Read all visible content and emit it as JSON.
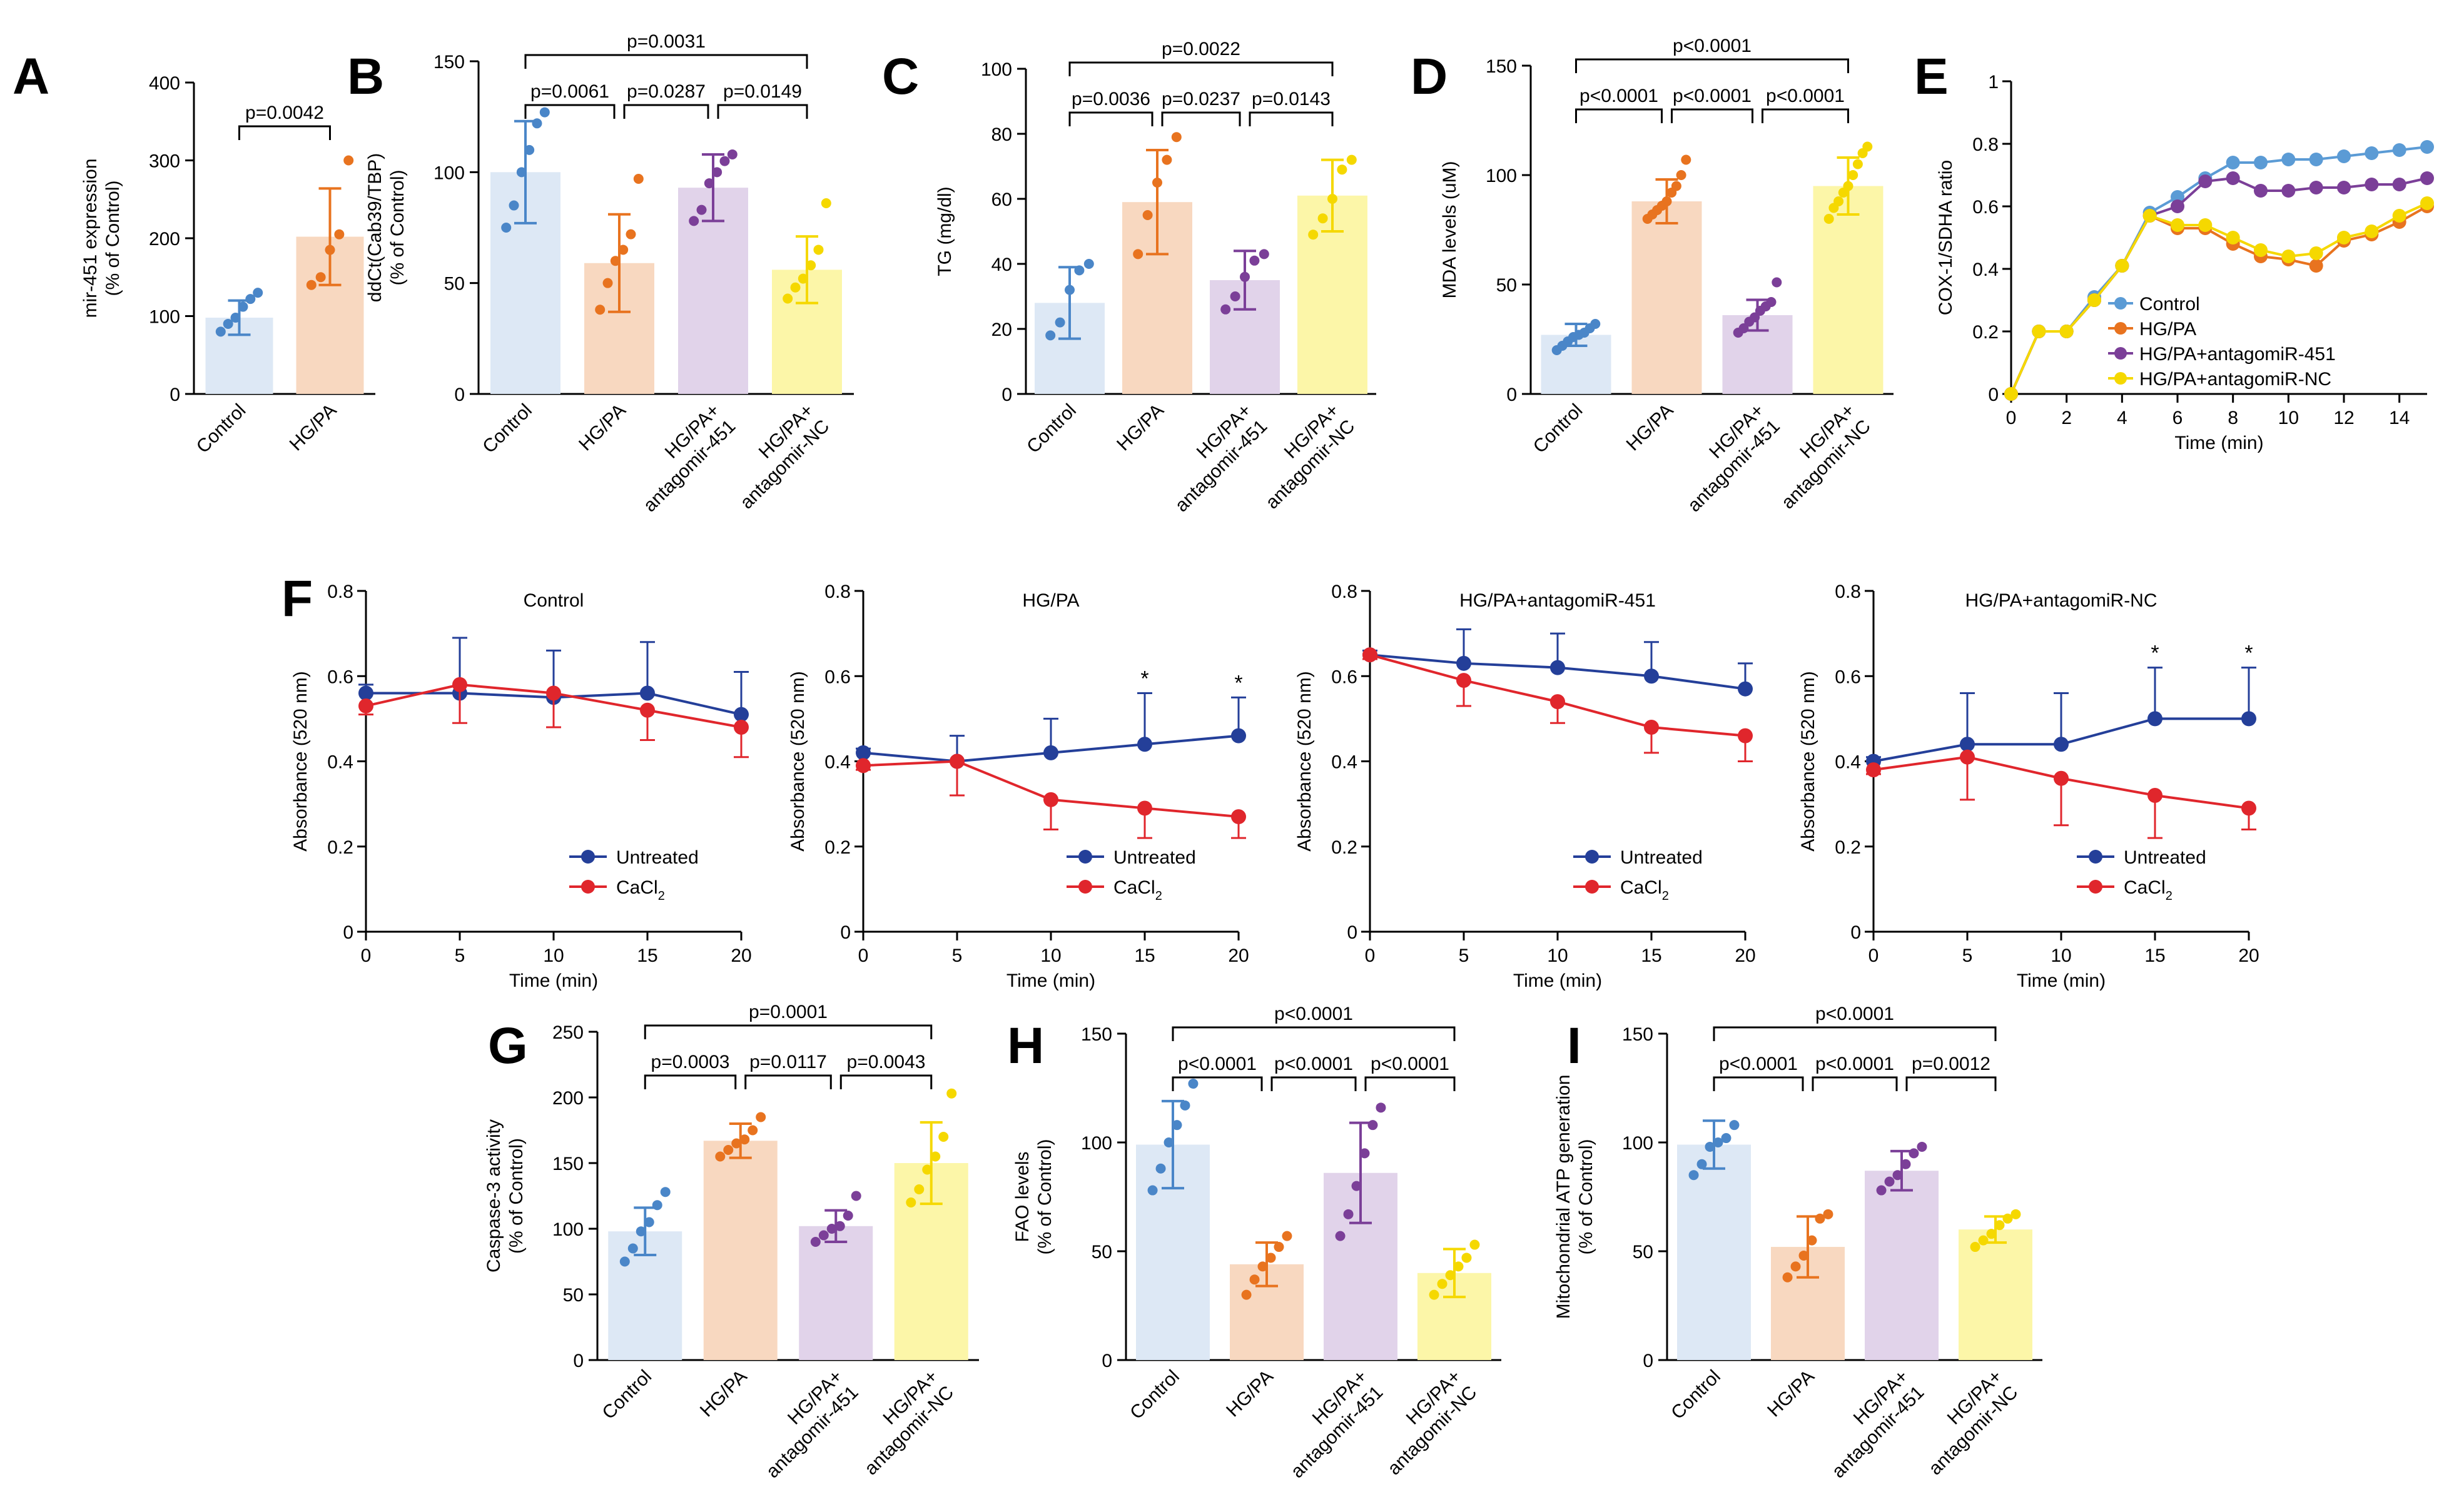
{
  "figure": {
    "colors": {
      "Control": "#4a86c8",
      "HG/PA": "#e8731f",
      "antagomiR-451": "#7b3f98",
      "antagomiR-NC": "#f5d800",
      "Control_bar": "#dde8f5",
      "HG/PA_bar": "#f8d8c0",
      "antagomiR-451_bar": "#e1d3ea",
      "antagomiR-NC_bar": "#fcf6a8",
      "line_control": "#5b9bd5",
      "untreated": "#243f99",
      "cacl2": "#e0262c"
    }
  },
  "chart_data": [
    {
      "id": "A",
      "panel_label": "A",
      "type": "bar",
      "categories": [
        "Control",
        "HG/PA"
      ],
      "values": [
        98,
        202
      ],
      "sd": [
        22,
        62
      ],
      "points": [
        [
          80,
          90,
          98,
          112,
          122,
          130
        ],
        [
          140,
          150,
          185,
          205,
          300
        ]
      ],
      "ylabel": [
        "mir-451 expression",
        "(% of Control)"
      ],
      "ylim": [
        0,
        400
      ],
      "yticks": [
        0,
        100,
        200,
        300,
        400
      ],
      "comparisons": [
        {
          "from": 0,
          "to": 1,
          "label": "p=0.0042",
          "level": 0
        }
      ]
    },
    {
      "id": "B",
      "panel_label": "B",
      "type": "bar",
      "categories": [
        "Control",
        "HG/PA",
        "HG/PA+\nantagomir-451",
        "HG/PA+\nantagomir-NC"
      ],
      "values": [
        100,
        59,
        93,
        56
      ],
      "sd": [
        23,
        22,
        15,
        15
      ],
      "points": [
        [
          75,
          85,
          100,
          110,
          122,
          127
        ],
        [
          38,
          50,
          60,
          65,
          72,
          97
        ],
        [
          78,
          83,
          95,
          100,
          105,
          108
        ],
        [
          43,
          48,
          52,
          58,
          65,
          86
        ]
      ],
      "ylabel": [
        "ddCt(Cab39/TBP)",
        "(% of Control)"
      ],
      "ylim": [
        0,
        150
      ],
      "yticks": [
        0,
        50,
        100,
        150
      ],
      "comparisons": [
        {
          "from": 0,
          "to": 1,
          "label": "p=0.0061",
          "level": 0
        },
        {
          "from": 1,
          "to": 2,
          "label": "p=0.0287",
          "level": 0
        },
        {
          "from": 2,
          "to": 3,
          "label": "p=0.0149",
          "level": 0
        },
        {
          "from": 0,
          "to": 3,
          "label": "p=0.0031",
          "level": 1
        }
      ]
    },
    {
      "id": "C",
      "panel_label": "C",
      "type": "bar",
      "categories": [
        "Control",
        "HG/PA",
        "HG/PA+\nantagomir-451",
        "HG/PA+\nantagomir-NC"
      ],
      "values": [
        28,
        59,
        35,
        61
      ],
      "sd": [
        11,
        16,
        9,
        11
      ],
      "points": [
        [
          18,
          22,
          32,
          38,
          40
        ],
        [
          43,
          55,
          65,
          72,
          79
        ],
        [
          26,
          30,
          36,
          41,
          43
        ],
        [
          49,
          54,
          60,
          69,
          72
        ]
      ],
      "ylabel": [
        "TG (mg/dl)"
      ],
      "ylim": [
        0,
        100
      ],
      "yticks": [
        0,
        20,
        40,
        60,
        80,
        100
      ],
      "comparisons": [
        {
          "from": 0,
          "to": 1,
          "label": "p=0.0036",
          "level": 0
        },
        {
          "from": 1,
          "to": 2,
          "label": "p=0.0237",
          "level": 0
        },
        {
          "from": 2,
          "to": 3,
          "label": "p=0.0143",
          "level": 0
        },
        {
          "from": 0,
          "to": 3,
          "label": "p=0.0022",
          "level": 1
        }
      ]
    },
    {
      "id": "D",
      "panel_label": "D",
      "type": "bar",
      "categories": [
        "Control",
        "HG/PA",
        "HG/PA+\nantagomir-451",
        "HG/PA+\nantagomir-NC"
      ],
      "values": [
        27,
        88,
        36,
        95
      ],
      "sd": [
        5,
        10,
        7,
        13
      ],
      "points": [
        [
          20,
          22,
          24,
          26,
          27,
          28,
          30,
          32
        ],
        [
          80,
          82,
          84,
          86,
          88,
          92,
          95,
          100,
          107
        ],
        [
          28,
          30,
          33,
          35,
          38,
          40,
          42,
          51
        ],
        [
          80,
          85,
          88,
          92,
          95,
          100,
          105,
          110,
          113
        ]
      ],
      "ylabel": [
        "MDA levels (uM)"
      ],
      "ylim": [
        0,
        150
      ],
      "yticks": [
        0,
        50,
        100,
        150
      ],
      "comparisons": [
        {
          "from": 0,
          "to": 1,
          "label": "p<0.0001",
          "level": 0
        },
        {
          "from": 1,
          "to": 2,
          "label": "p<0.0001",
          "level": 0
        },
        {
          "from": 2,
          "to": 3,
          "label": "p<0.0001",
          "level": 0
        },
        {
          "from": 0,
          "to": 3,
          "label": "p<0.0001",
          "level": 1
        }
      ]
    },
    {
      "id": "E",
      "panel_label": "E",
      "type": "line",
      "x": [
        0,
        1,
        2,
        3,
        4,
        5,
        6,
        7,
        8,
        9,
        10,
        11,
        12,
        13,
        14,
        15
      ],
      "series": [
        {
          "name": "Control",
          "color": "#5b9bd5",
          "values": [
            0,
            0.2,
            0.2,
            0.31,
            0.41,
            0.58,
            0.63,
            0.69,
            0.74,
            0.74,
            0.75,
            0.75,
            0.76,
            0.77,
            0.78,
            0.79
          ]
        },
        {
          "name": "HG/PA",
          "color": "#e8731f",
          "values": [
            0,
            0.2,
            0.2,
            0.3,
            0.41,
            0.57,
            0.53,
            0.53,
            0.48,
            0.44,
            0.43,
            0.41,
            0.49,
            0.51,
            0.55,
            0.6
          ]
        },
        {
          "name": "HG/PA+antagomiR-451",
          "color": "#7b3f98",
          "values": [
            0,
            0.2,
            0.2,
            0.3,
            0.41,
            0.57,
            0.6,
            0.68,
            0.69,
            0.65,
            0.65,
            0.66,
            0.66,
            0.67,
            0.67,
            0.69
          ]
        },
        {
          "name": "HG/PA+antagomiR-NC",
          "color": "#f5d800",
          "values": [
            0,
            0.2,
            0.2,
            0.3,
            0.41,
            0.57,
            0.54,
            0.54,
            0.5,
            0.46,
            0.44,
            0.45,
            0.5,
            0.52,
            0.57,
            0.61
          ]
        }
      ],
      "xlabel": "Time (min)",
      "ylabel": "COX-1/SDHA ratio",
      "xlim": [
        0,
        15
      ],
      "xticks": [
        0,
        2,
        4,
        6,
        8,
        10,
        12,
        14
      ],
      "ylim": [
        0,
        1.0
      ],
      "yticks": [
        0,
        0.2,
        0.4,
        0.6,
        0.8,
        1.0
      ],
      "legend": "bottom-right"
    },
    {
      "id": "F1",
      "panel_label": "F",
      "type": "line",
      "title": "Control",
      "x": [
        0,
        5,
        10,
        15,
        20
      ],
      "series": [
        {
          "name": "Untreated",
          "color": "#243f99",
          "values": [
            0.56,
            0.56,
            0.55,
            0.56,
            0.51
          ],
          "err": [
            0.02,
            0.13,
            0.11,
            0.12,
            0.1
          ]
        },
        {
          "name": "CaCl2",
          "color": "#e0262c",
          "values": [
            0.53,
            0.58,
            0.56,
            0.52,
            0.48
          ],
          "err": [
            0.02,
            0.09,
            0.08,
            0.07,
            0.07
          ]
        }
      ],
      "stars": [],
      "xlabel": "Time (min)",
      "ylabel": "Absorbance (520 nm)",
      "xlim": [
        0,
        20
      ],
      "xticks": [
        0,
        5,
        10,
        15,
        20
      ],
      "ylim": [
        0,
        0.8
      ],
      "yticks": [
        0,
        0.2,
        0.4,
        0.6,
        0.8
      ],
      "legend_labels": [
        "Untreated",
        "CaCl",
        "2"
      ],
      "legend": "bottom-right"
    },
    {
      "id": "F2",
      "panel_label": "",
      "type": "line",
      "title": "HG/PA",
      "x": [
        0,
        5,
        10,
        15,
        20
      ],
      "series": [
        {
          "name": "Untreated",
          "color": "#243f99",
          "values": [
            0.42,
            0.4,
            0.42,
            0.44,
            0.46
          ],
          "err": [
            0.01,
            0.06,
            0.08,
            0.12,
            0.09
          ]
        },
        {
          "name": "CaCl2",
          "color": "#e0262c",
          "values": [
            0.39,
            0.4,
            0.31,
            0.29,
            0.27
          ],
          "err": [
            0.01,
            0.08,
            0.07,
            0.07,
            0.05
          ]
        }
      ],
      "stars": [
        15,
        20
      ],
      "xlabel": "Time (min)",
      "ylabel": "Absorbance (520 nm)",
      "xlim": [
        0,
        20
      ],
      "xticks": [
        0,
        5,
        10,
        15,
        20
      ],
      "ylim": [
        0,
        0.8
      ],
      "yticks": [
        0,
        0.2,
        0.4,
        0.6,
        0.8
      ],
      "legend_labels": [
        "Untreated",
        "CaCl",
        "2"
      ],
      "legend": "bottom-right"
    },
    {
      "id": "F3",
      "panel_label": "",
      "type": "line",
      "title": "HG/PA+antagomiR-451",
      "x": [
        0,
        5,
        10,
        15,
        20
      ],
      "series": [
        {
          "name": "Untreated",
          "color": "#243f99",
          "values": [
            0.65,
            0.63,
            0.62,
            0.6,
            0.57
          ],
          "err": [
            0.01,
            0.08,
            0.08,
            0.08,
            0.06
          ]
        },
        {
          "name": "CaCl2",
          "color": "#e0262c",
          "values": [
            0.65,
            0.59,
            0.54,
            0.48,
            0.46
          ],
          "err": [
            0.01,
            0.06,
            0.05,
            0.06,
            0.06
          ]
        }
      ],
      "stars": [],
      "xlabel": "Time (min)",
      "ylabel": "Absorbance (520 nm)",
      "xlim": [
        0,
        20
      ],
      "xticks": [
        0,
        5,
        10,
        15,
        20
      ],
      "ylim": [
        0,
        0.8
      ],
      "yticks": [
        0,
        0.2,
        0.4,
        0.6,
        0.8
      ],
      "legend_labels": [
        "Untreated",
        "CaCl",
        "2"
      ],
      "legend": "bottom-right"
    },
    {
      "id": "F4",
      "panel_label": "",
      "type": "line",
      "title": "HG/PA+antagomiR-NC",
      "x": [
        0,
        5,
        10,
        15,
        20
      ],
      "series": [
        {
          "name": "Untreated",
          "color": "#243f99",
          "values": [
            0.4,
            0.44,
            0.44,
            0.5,
            0.5
          ],
          "err": [
            0.01,
            0.12,
            0.12,
            0.12,
            0.12
          ]
        },
        {
          "name": "CaCl2",
          "color": "#e0262c",
          "values": [
            0.38,
            0.41,
            0.36,
            0.32,
            0.29
          ],
          "err": [
            0.01,
            0.1,
            0.11,
            0.1,
            0.05
          ]
        }
      ],
      "stars": [
        15,
        20
      ],
      "xlabel": "Time (min)",
      "ylabel": "Absorbance (520 nm)",
      "xlim": [
        0,
        20
      ],
      "xticks": [
        0,
        5,
        10,
        15,
        20
      ],
      "ylim": [
        0,
        0.8
      ],
      "yticks": [
        0,
        0.2,
        0.4,
        0.6,
        0.8
      ],
      "legend_labels": [
        "Untreated",
        "CaCl",
        "2"
      ],
      "legend": "bottom-right"
    },
    {
      "id": "G",
      "panel_label": "G",
      "type": "bar",
      "categories": [
        "Control",
        "HG/PA",
        "HG/PA+\nantagomir-451",
        "HG/PA+\nantagomir-NC"
      ],
      "values": [
        98,
        167,
        102,
        150
      ],
      "sd": [
        18,
        13,
        12,
        31
      ],
      "points": [
        [
          75,
          85,
          98,
          105,
          118,
          128
        ],
        [
          155,
          160,
          165,
          168,
          175,
          185
        ],
        [
          90,
          95,
          100,
          102,
          110,
          125
        ],
        [
          120,
          130,
          145,
          155,
          170,
          203
        ]
      ],
      "ylabel": [
        "Caspase-3 activity",
        "(% of Control)"
      ],
      "ylim": [
        0,
        250
      ],
      "yticks": [
        0,
        50,
        100,
        150,
        200,
        250
      ],
      "comparisons": [
        {
          "from": 0,
          "to": 1,
          "label": "p=0.0003",
          "level": 0
        },
        {
          "from": 1,
          "to": 2,
          "label": "p=0.0117",
          "level": 0
        },
        {
          "from": 2,
          "to": 3,
          "label": "p=0.0043",
          "level": 0
        },
        {
          "from": 0,
          "to": 3,
          "label": "p=0.0001",
          "level": 1
        }
      ]
    },
    {
      "id": "H",
      "panel_label": "H",
      "type": "bar",
      "categories": [
        "Control",
        "HG/PA",
        "HG/PA+\nantagomir-451",
        "HG/PA+\nantagomir-NC"
      ],
      "values": [
        99,
        44,
        86,
        40
      ],
      "sd": [
        20,
        10,
        23,
        11
      ],
      "points": [
        [
          78,
          88,
          100,
          108,
          117,
          127
        ],
        [
          30,
          37,
          43,
          47,
          52,
          57
        ],
        [
          57,
          67,
          80,
          95,
          108,
          116
        ],
        [
          30,
          35,
          39,
          43,
          47,
          53
        ]
      ],
      "ylabel": [
        "FAO levels",
        "(% of Control)"
      ],
      "ylim": [
        0,
        150
      ],
      "yticks": [
        0,
        50,
        100,
        150
      ],
      "comparisons": [
        {
          "from": 0,
          "to": 1,
          "label": "p<0.0001",
          "level": 0
        },
        {
          "from": 1,
          "to": 2,
          "label": "p<0.0001",
          "level": 0
        },
        {
          "from": 2,
          "to": 3,
          "label": "p<0.0001",
          "level": 0
        },
        {
          "from": 0,
          "to": 3,
          "label": "p<0.0001",
          "level": 1
        }
      ]
    },
    {
      "id": "I",
      "panel_label": "I",
      "type": "bar",
      "categories": [
        "Control",
        "HG/PA",
        "HG/PA+\nantagomir-451",
        "HG/PA+\nantagomir-NC"
      ],
      "values": [
        99,
        52,
        87,
        60
      ],
      "sd": [
        11,
        14,
        9,
        6
      ],
      "points": [
        [
          85,
          90,
          98,
          100,
          102,
          108
        ],
        [
          38,
          43,
          48,
          55,
          65,
          67
        ],
        [
          78,
          82,
          85,
          90,
          95,
          98
        ],
        [
          52,
          55,
          58,
          62,
          65,
          67
        ]
      ],
      "ylabel": [
        "Mitochondrial ATP generation",
        "(% of Control)"
      ],
      "ylim": [
        0,
        150
      ],
      "yticks": [
        0,
        50,
        100,
        150
      ],
      "comparisons": [
        {
          "from": 0,
          "to": 1,
          "label": "p<0.0001",
          "level": 0
        },
        {
          "from": 1,
          "to": 2,
          "label": "p<0.0001",
          "level": 0
        },
        {
          "from": 2,
          "to": 3,
          "label": "p=0.0012",
          "level": 0
        },
        {
          "from": 0,
          "to": 3,
          "label": "p<0.0001",
          "level": 1
        }
      ]
    }
  ]
}
